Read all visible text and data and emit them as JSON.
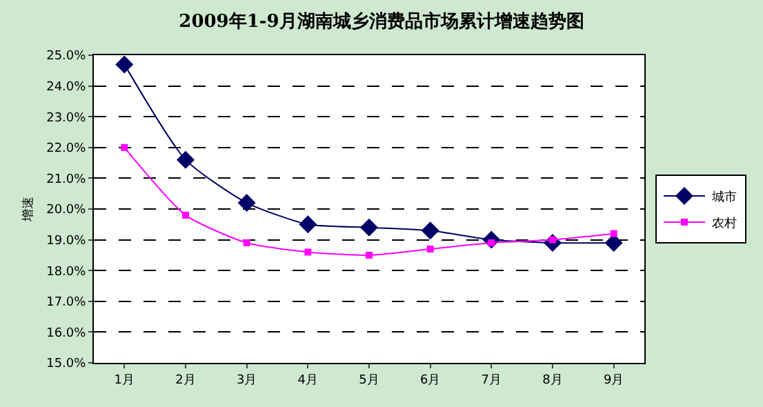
{
  "chart_data": {
    "type": "line",
    "title": "2009年1-9月湖南城乡消费品市场累计增速趋势图",
    "ylabel": "增速",
    "categories": [
      "1月",
      "2月",
      "3月",
      "4月",
      "5月",
      "6月",
      "7月",
      "8月",
      "9月"
    ],
    "series": [
      {
        "name": "城市",
        "color": "#000066",
        "marker": "diamond",
        "values": [
          24.7,
          21.6,
          20.2,
          19.5,
          19.4,
          19.3,
          19.0,
          18.9,
          18.9
        ]
      },
      {
        "name": "农村",
        "color": "#ff00ff",
        "marker": "square",
        "values": [
          22.0,
          19.8,
          18.9,
          18.6,
          18.5,
          18.7,
          18.9,
          19.0,
          19.2
        ]
      }
    ],
    "ylim": [
      15,
      25
    ],
    "yticks": [
      {
        "value": 15,
        "label": "15.0%"
      },
      {
        "value": 16,
        "label": "16.0%"
      },
      {
        "value": 17,
        "label": "17.0%"
      },
      {
        "value": 18,
        "label": "18.0%"
      },
      {
        "value": 19,
        "label": "19.0%"
      },
      {
        "value": 20,
        "label": "20.0%"
      },
      {
        "value": 21,
        "label": "21.0%"
      },
      {
        "value": 22,
        "label": "22.0%"
      },
      {
        "value": 23,
        "label": "23.0%"
      },
      {
        "value": 24,
        "label": "24.0%"
      },
      {
        "value": 25,
        "label": "25.0%"
      }
    ],
    "grid": "y",
    "legend": "right",
    "line_style": "solid"
  }
}
